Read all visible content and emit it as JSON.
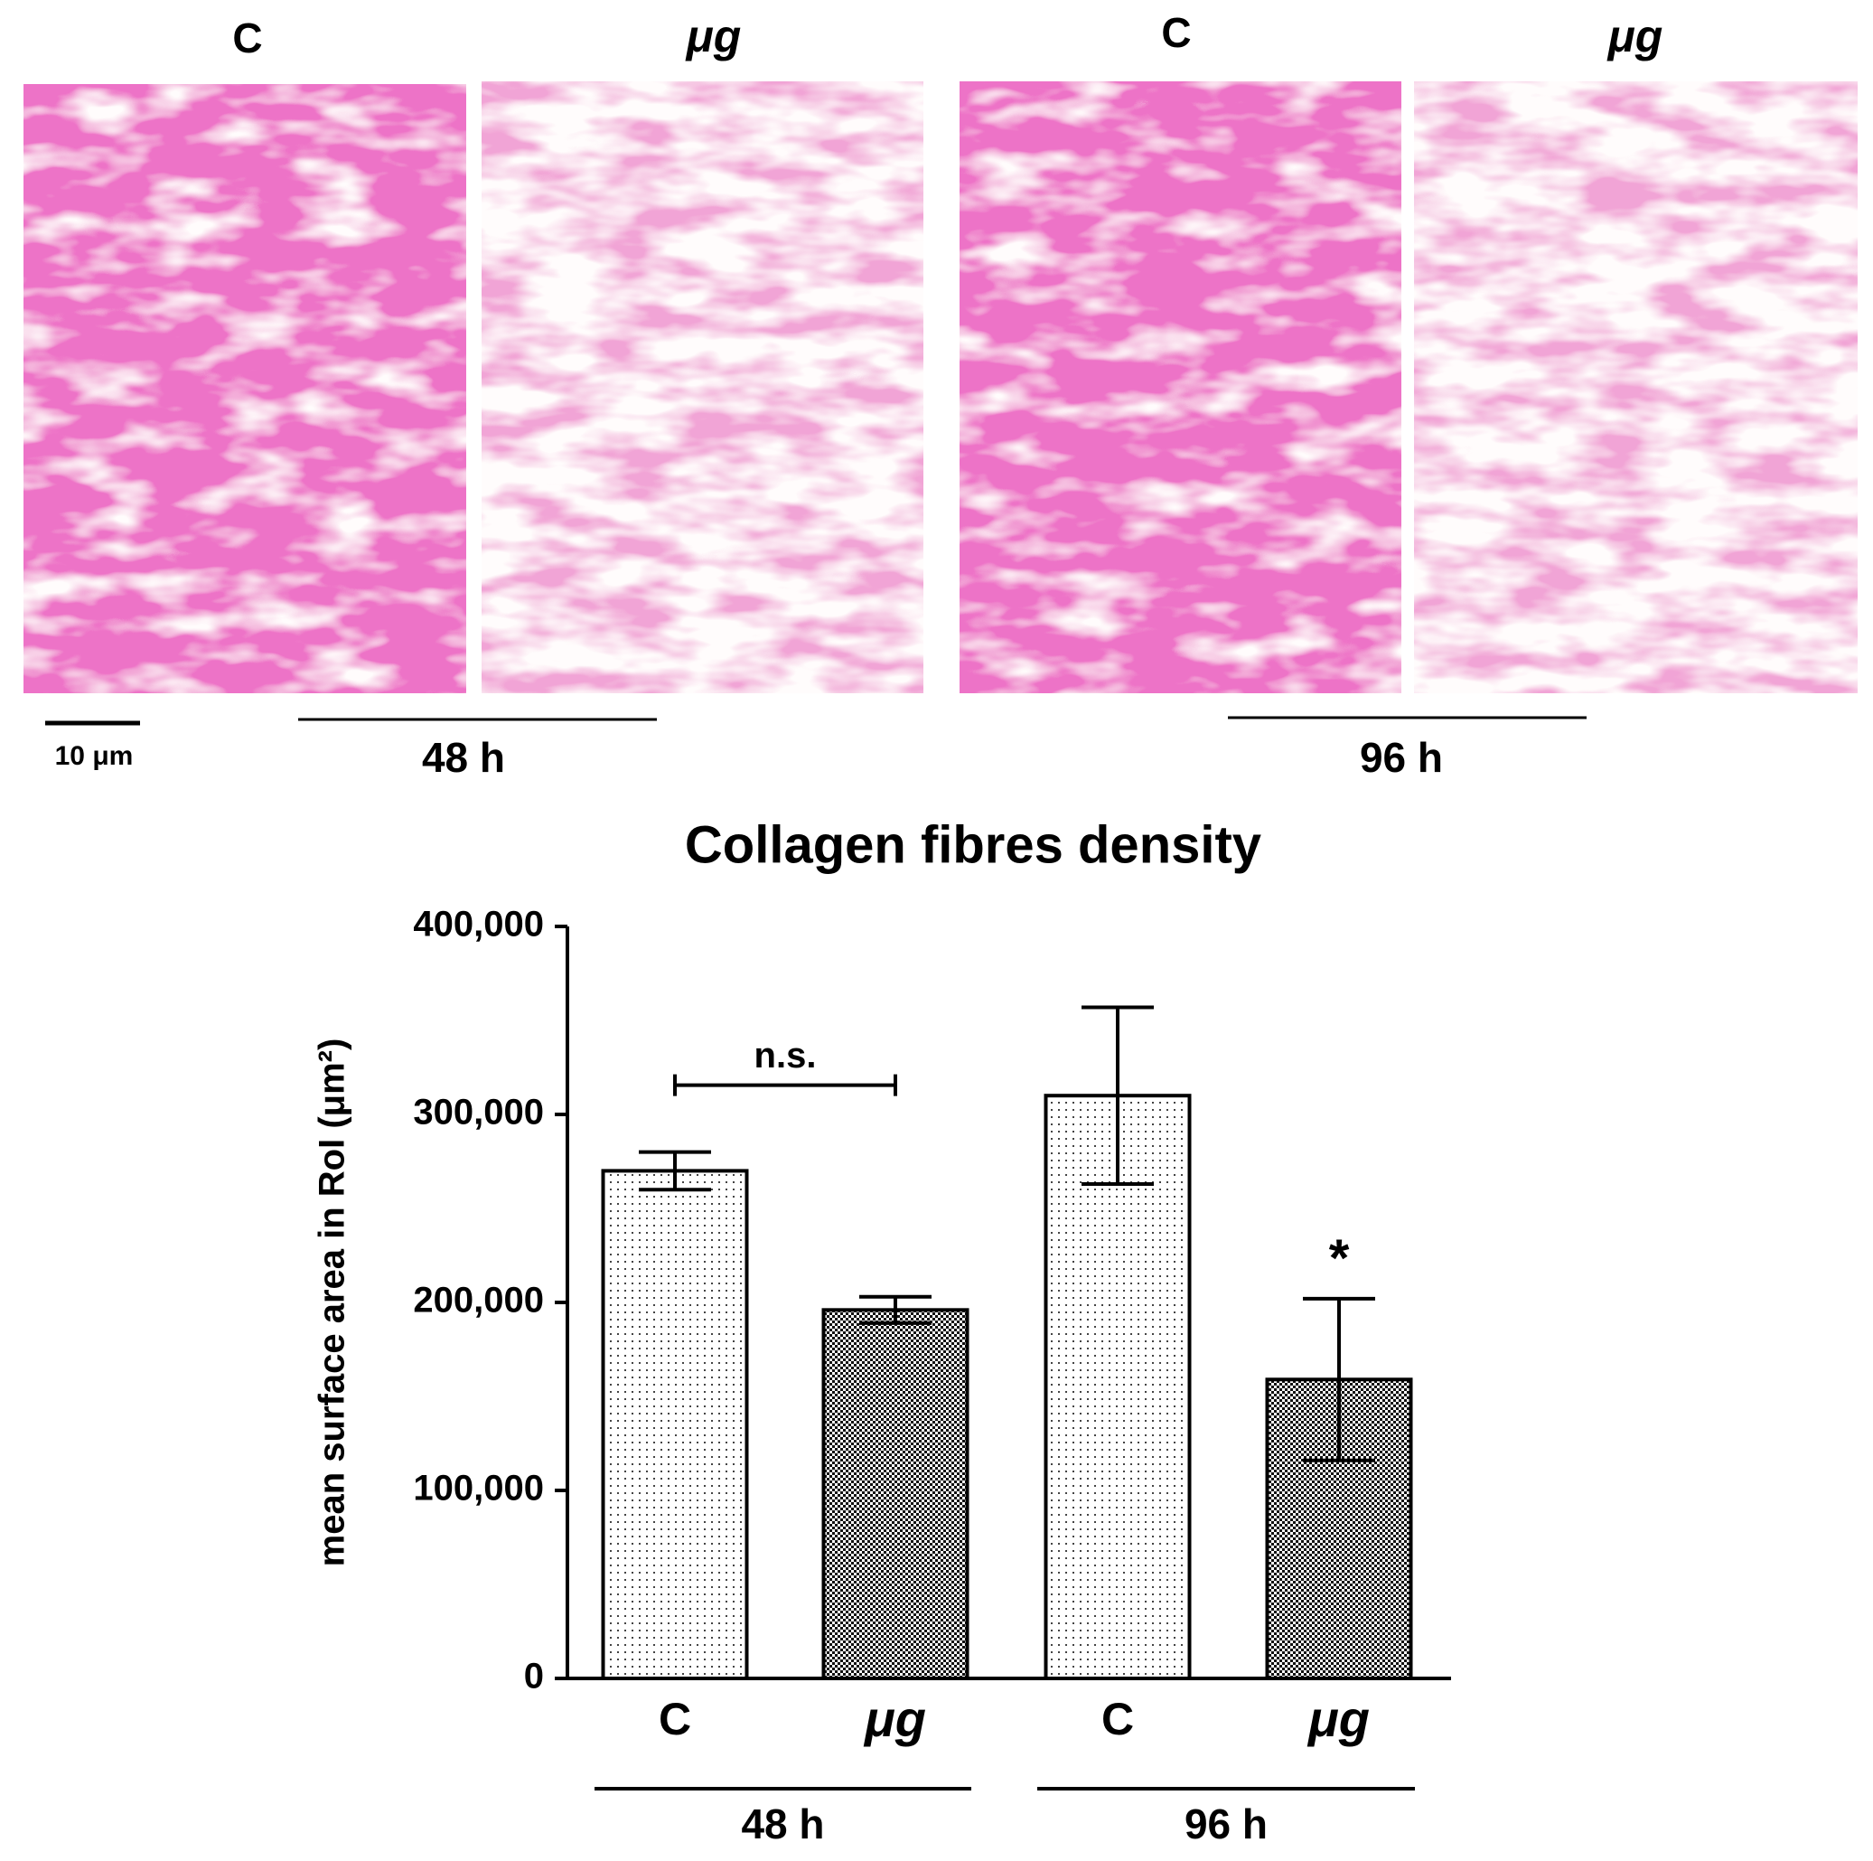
{
  "figure": {
    "panels": [
      "C",
      "μg",
      "C",
      "μg"
    ],
    "scale_bar": "10 μm",
    "groups": [
      "48 h",
      "96 h"
    ]
  },
  "chart_data": {
    "type": "bar",
    "title": "Collagen fibres density",
    "y_label": "mean surface area in RoI (μm²)",
    "categories": [
      "C",
      "μg",
      "C",
      "μg"
    ],
    "groups": [
      "48 h",
      "96 h"
    ],
    "values": [
      270000,
      196000,
      310000,
      159000
    ],
    "errors": [
      10000,
      7000,
      47000,
      43000
    ],
    "patterns": [
      "sparse",
      "dense",
      "sparse",
      "dense"
    ],
    "ylim": [
      0,
      400000
    ],
    "yticks": [
      0,
      {
        "value": 100000,
        "label": "100,000"
      },
      {
        "value": 200000,
        "label": "200,000"
      },
      {
        "value": 300000,
        "label": "300,000"
      },
      {
        "value": 400000,
        "label": "400,000"
      }
    ],
    "annotations": [
      {
        "text": "n.s.",
        "between": [
          0,
          1
        ]
      },
      {
        "text": "*",
        "over": 3
      }
    ]
  }
}
